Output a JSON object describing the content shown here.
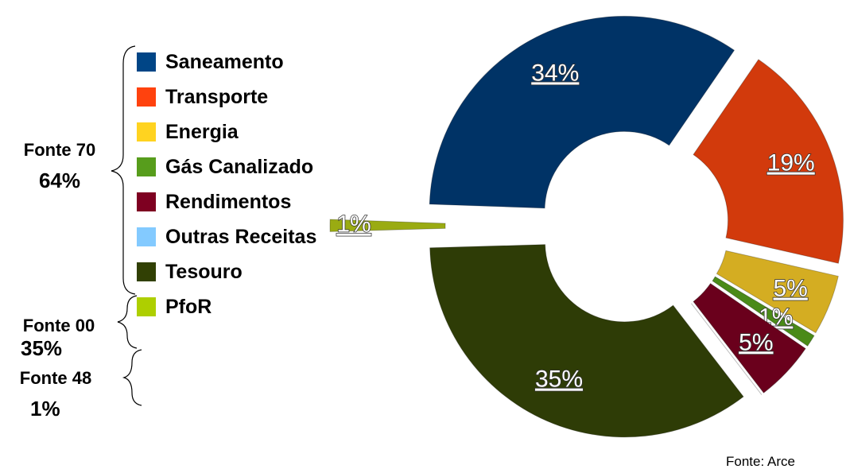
{
  "chart_data": {
    "type": "donut",
    "categories": [
      "Saneamento",
      "Transporte",
      "Energia",
      "Gás Canalizado",
      "Rendimentos",
      "Outras Receitas",
      "Tesouro",
      "PfoR"
    ],
    "values": [
      34,
      19,
      5,
      1,
      5,
      0,
      35,
      1
    ],
    "value_labels": [
      "34%",
      "19%",
      "5%",
      "1%",
      "5%",
      null,
      "35%",
      "1%"
    ],
    "colors": [
      "#004586",
      "#ff420e",
      "#ffd320",
      "#579d1c",
      "#7e0021",
      "#83caff",
      "#314004",
      "#aecf00"
    ],
    "slice_colors": [
      "#003366",
      "#d23a0c",
      "#d4ad22",
      "#4a8a18",
      "#6a001c",
      "#83caff",
      "#2e3c06",
      "#9aab12"
    ],
    "groups": [
      {
        "name": "Fonte 70",
        "share": "64%"
      },
      {
        "name": "Fonte 00",
        "share": "35%"
      },
      {
        "name": "Fonte 48",
        "share": "1%"
      }
    ],
    "source": "Fonte: Arce"
  }
}
